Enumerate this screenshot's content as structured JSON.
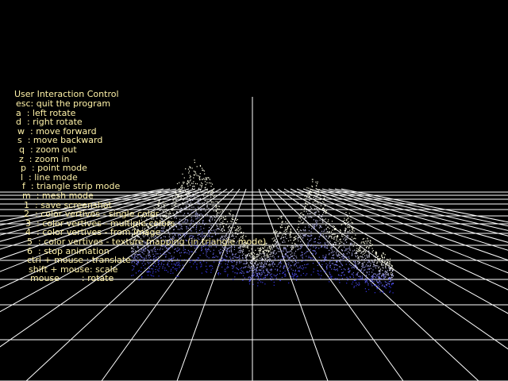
{
  "overlay": {
    "title": "User Interaction Control",
    "lines": [
      "esc: quit the program",
      "a  : left rotate",
      "d  : right rotate",
      "w  : move forward",
      "s  : move backward",
      "q  : zoom out",
      "z  : zoom in",
      "p  : point mode",
      "l  : line mode",
      "f  : triangle strip mode",
      "m  : mesh mode",
      "1  : save screenshot",
      "2  : color vertives - single color",
      "3  : color vertives - multiple colors",
      "4  : color vertives - from image",
      "5  : color vertives - texture mapping (in triangle mode)",
      "6  : stop animation",
      "ctrl + mouse : translate",
      "shift + mouse: scale",
      "mouse        : rotate"
    ]
  },
  "colors": {
    "background": "#000000",
    "text": "#fff2a8",
    "grid": "#ffffff",
    "terrain_low": "#2b2bd8",
    "terrain_high": "#ffffff"
  },
  "scene": {
    "render_mode": "point mode"
  }
}
